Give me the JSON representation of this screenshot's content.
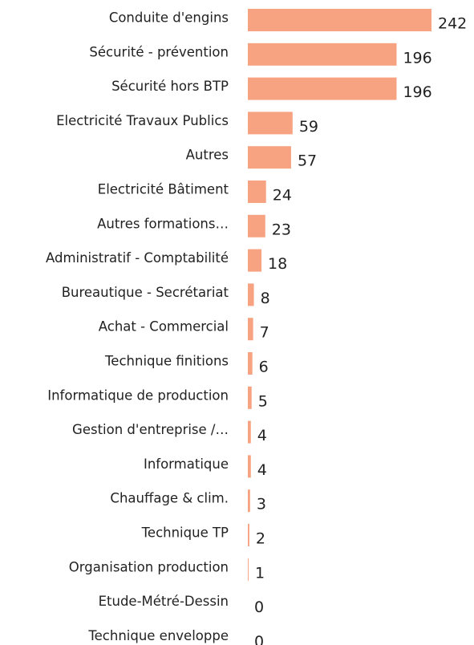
{
  "chart_data": {
    "type": "bar",
    "orientation": "horizontal",
    "categories": [
      "Conduite d'engins",
      "Sécurité - prévention",
      "Sécurité hors BTP",
      "Electricité Travaux Publics",
      "Autres",
      "Electricité Bâtiment",
      "Autres formations…",
      "Administratif - Comptabilité",
      "Bureautique - Secrétariat",
      "Achat - Commercial",
      "Technique finitions",
      "Informatique de production",
      "Gestion d'entreprise /…",
      "Informatique",
      "Chauffage & clim.",
      "Technique TP",
      "Organisation production",
      "Etude-Métré-Dessin",
      "Technique enveloppe"
    ],
    "values": [
      242,
      196,
      196,
      59,
      57,
      24,
      23,
      18,
      8,
      7,
      6,
      5,
      4,
      4,
      3,
      2,
      1,
      0,
      0
    ],
    "color": "#f7a382"
  }
}
